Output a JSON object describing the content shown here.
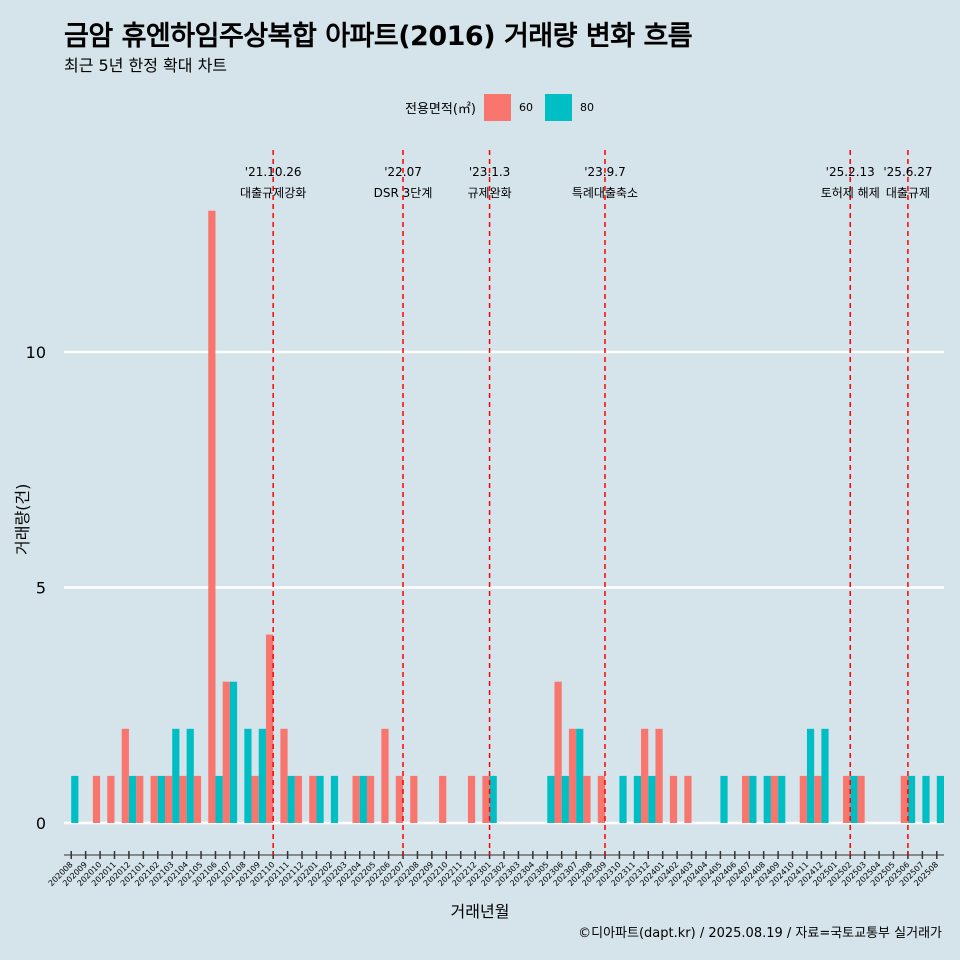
{
  "title": "금암 휴엔하임주상복합 아파트(2016) 거래량 변화 흐름",
  "subtitle": "최근 5년 한정 확대 차트",
  "legend": {
    "title": "전용면적(㎡)",
    "items": [
      {
        "label": "60",
        "color": "#f8766d"
      },
      {
        "label": "80",
        "color": "#00bfc4"
      }
    ]
  },
  "caption": "©디아파트(dapt.kr) / 2025.08.19 / 자료=국토교통부 실거래가",
  "chart_data": {
    "type": "bar",
    "xlabel": "거래년월",
    "ylabel": "거래량(건)",
    "ylim": [
      0,
      13
    ],
    "yticks": [
      0,
      5,
      10
    ],
    "categories": [
      "202008",
      "202009",
      "202010",
      "202011",
      "202012",
      "202101",
      "202102",
      "202103",
      "202104",
      "202105",
      "202106",
      "202107",
      "202108",
      "202109",
      "202110",
      "202111",
      "202112",
      "202201",
      "202202",
      "202203",
      "202204",
      "202205",
      "202206",
      "202207",
      "202208",
      "202209",
      "202210",
      "202211",
      "202212",
      "202301",
      "202302",
      "202303",
      "202304",
      "202305",
      "202306",
      "202307",
      "202308",
      "202309",
      "202310",
      "202311",
      "202312",
      "202401",
      "202402",
      "202403",
      "202404",
      "202405",
      "202406",
      "202407",
      "202408",
      "202409",
      "202410",
      "202411",
      "202412",
      "202501",
      "202502",
      "202503",
      "202504",
      "202505",
      "202506",
      "202507",
      "202508"
    ],
    "series": [
      {
        "name": "60",
        "color": "#f8766d",
        "values": [
          0,
          0,
          1,
          1,
          2,
          1,
          1,
          1,
          1,
          1,
          13,
          3,
          0,
          1,
          4,
          2,
          1,
          1,
          0,
          0,
          1,
          1,
          2,
          1,
          1,
          0,
          1,
          0,
          1,
          1,
          0,
          0,
          0,
          0,
          3,
          2,
          1,
          1,
          0,
          0,
          2,
          2,
          1,
          1,
          0,
          0,
          0,
          1,
          0,
          1,
          0,
          1,
          1,
          0,
          1,
          1,
          0,
          0,
          1,
          0,
          0
        ]
      },
      {
        "name": "80",
        "color": "#00bfc4",
        "values": [
          1,
          0,
          0,
          0,
          1,
          0,
          1,
          2,
          2,
          0,
          1,
          3,
          2,
          2,
          0,
          1,
          0,
          1,
          1,
          0,
          1,
          0,
          0,
          0,
          0,
          0,
          0,
          0,
          0,
          1,
          0,
          0,
          0,
          1,
          1,
          2,
          0,
          0,
          1,
          1,
          1,
          0,
          0,
          0,
          0,
          1,
          0,
          1,
          1,
          1,
          0,
          2,
          2,
          0,
          1,
          0,
          0,
          0,
          1,
          1,
          1
        ]
      }
    ],
    "annotations": [
      {
        "date": "'21.10.26",
        "text": "대출규제강화",
        "at": "202110"
      },
      {
        "date": "'22.07",
        "text": "DSR 3단계",
        "at": "202207"
      },
      {
        "date": "'23.1.3",
        "text": "규제완화",
        "at": "202301"
      },
      {
        "date": "'23.9.7",
        "text": "특례대출축소",
        "at": "202309"
      },
      {
        "date": "'25.2.13",
        "text": "토허제 해제",
        "at": "202502"
      },
      {
        "date": "'25.6.27",
        "text": "대출규제",
        "at": "202506"
      }
    ],
    "grid": true,
    "legend_position": "top"
  }
}
